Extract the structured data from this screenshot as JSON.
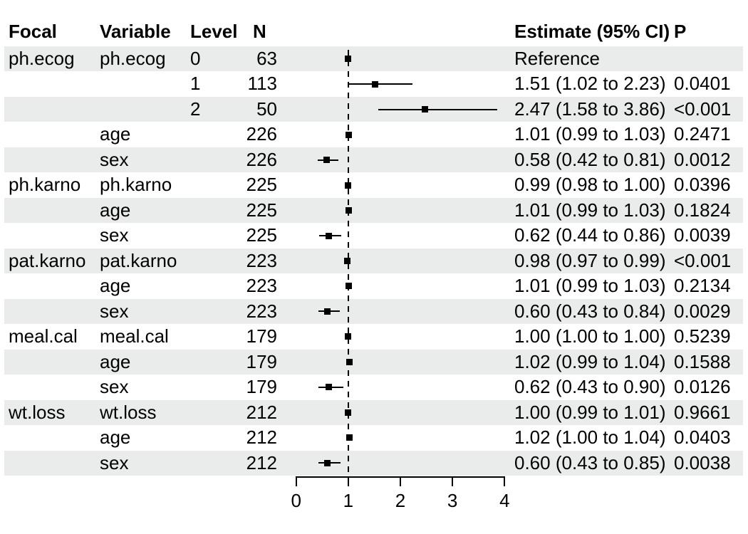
{
  "chart_data": {
    "type": "forest",
    "title": "",
    "columns": [
      "Focal",
      "Variable",
      "Level",
      "N",
      "Estimate (95% CI)",
      "P"
    ],
    "xlabel": "",
    "xlim": [
      0,
      4
    ],
    "x_ticks": [
      0,
      1,
      2,
      3,
      4
    ],
    "reference_x": 1,
    "legend": "none",
    "grid": "off",
    "rows": [
      {
        "focal": "ph.ecog",
        "variable": "ph.ecog",
        "level": "0",
        "n": "63",
        "estimate_label": "Reference",
        "p": "",
        "point": 1.0,
        "ci_low": null,
        "ci_high": null
      },
      {
        "focal": "",
        "variable": "",
        "level": "1",
        "n": "113",
        "estimate_label": "1.51 (1.02 to 2.23)",
        "p": "0.0401",
        "point": 1.51,
        "ci_low": 1.02,
        "ci_high": 2.23
      },
      {
        "focal": "",
        "variable": "",
        "level": "2",
        "n": "50",
        "estimate_label": "2.47 (1.58 to 3.86)",
        "p": "<0.001",
        "point": 2.47,
        "ci_low": 1.58,
        "ci_high": 3.86
      },
      {
        "focal": "",
        "variable": "age",
        "level": "",
        "n": "226",
        "estimate_label": "1.01 (0.99 to 1.03)",
        "p": "0.2471",
        "point": 1.01,
        "ci_low": 0.99,
        "ci_high": 1.03
      },
      {
        "focal": "",
        "variable": "sex",
        "level": "",
        "n": "226",
        "estimate_label": "0.58 (0.42 to 0.81)",
        "p": "0.0012",
        "point": 0.58,
        "ci_low": 0.42,
        "ci_high": 0.81
      },
      {
        "focal": "ph.karno",
        "variable": "ph.karno",
        "level": "",
        "n": "225",
        "estimate_label": "0.99 (0.98 to 1.00)",
        "p": "0.0396",
        "point": 0.99,
        "ci_low": 0.98,
        "ci_high": 1.0
      },
      {
        "focal": "",
        "variable": "age",
        "level": "",
        "n": "225",
        "estimate_label": "1.01 (0.99 to 1.03)",
        "p": "0.1824",
        "point": 1.01,
        "ci_low": 0.99,
        "ci_high": 1.03
      },
      {
        "focal": "",
        "variable": "sex",
        "level": "",
        "n": "225",
        "estimate_label": "0.62 (0.44 to 0.86)",
        "p": "0.0039",
        "point": 0.62,
        "ci_low": 0.44,
        "ci_high": 0.86
      },
      {
        "focal": "pat.karno",
        "variable": "pat.karno",
        "level": "",
        "n": "223",
        "estimate_label": "0.98 (0.97 to 0.99)",
        "p": "<0.001",
        "point": 0.98,
        "ci_low": 0.97,
        "ci_high": 0.99
      },
      {
        "focal": "",
        "variable": "age",
        "level": "",
        "n": "223",
        "estimate_label": "1.01 (0.99 to 1.03)",
        "p": "0.2134",
        "point": 1.01,
        "ci_low": 0.99,
        "ci_high": 1.03
      },
      {
        "focal": "",
        "variable": "sex",
        "level": "",
        "n": "223",
        "estimate_label": "0.60 (0.43 to 0.84)",
        "p": "0.0029",
        "point": 0.6,
        "ci_low": 0.43,
        "ci_high": 0.84
      },
      {
        "focal": "meal.cal",
        "variable": "meal.cal",
        "level": "",
        "n": "179",
        "estimate_label": "1.00 (1.00 to 1.00)",
        "p": "0.5239",
        "point": 1.0,
        "ci_low": 1.0,
        "ci_high": 1.0
      },
      {
        "focal": "",
        "variable": "age",
        "level": "",
        "n": "179",
        "estimate_label": "1.02 (0.99 to 1.04)",
        "p": "0.1588",
        "point": 1.02,
        "ci_low": 0.99,
        "ci_high": 1.04
      },
      {
        "focal": "",
        "variable": "sex",
        "level": "",
        "n": "179",
        "estimate_label": "0.62 (0.43 to 0.90)",
        "p": "0.0126",
        "point": 0.62,
        "ci_low": 0.43,
        "ci_high": 0.9
      },
      {
        "focal": "wt.loss",
        "variable": "wt.loss",
        "level": "",
        "n": "212",
        "estimate_label": "1.00 (0.99 to 1.01)",
        "p": "0.9661",
        "point": 1.0,
        "ci_low": 0.99,
        "ci_high": 1.01
      },
      {
        "focal": "",
        "variable": "age",
        "level": "",
        "n": "212",
        "estimate_label": "1.02 (1.00 to 1.04)",
        "p": "0.0403",
        "point": 1.02,
        "ci_low": 1.0,
        "ci_high": 1.04
      },
      {
        "focal": "",
        "variable": "sex",
        "level": "",
        "n": "212",
        "estimate_label": "0.60 (0.43 to 0.85)",
        "p": "0.0038",
        "point": 0.6,
        "ci_low": 0.43,
        "ci_high": 0.85
      }
    ],
    "colors": {
      "background": "#FFFFFF",
      "stripe": "#EAECEC",
      "text": "#000000",
      "line": "#000000",
      "marker": "#000000"
    }
  }
}
